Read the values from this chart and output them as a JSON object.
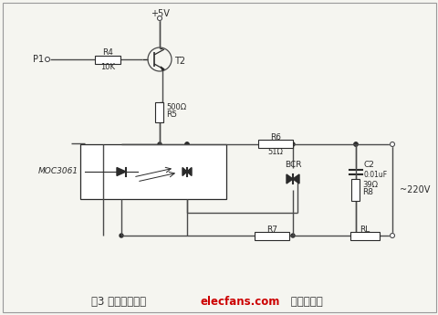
{
  "caption_prefix": "图3 过零触发电路",
  "caption_red": "elecfans.com",
  "caption_suffix": " 电子发烧友",
  "bg_color": "#f5f5f0",
  "line_color": "#4a4a4a",
  "component_color": "#2a2a2a",
  "fig_width": 4.81,
  "fig_height": 3.45,
  "dpi": 100
}
